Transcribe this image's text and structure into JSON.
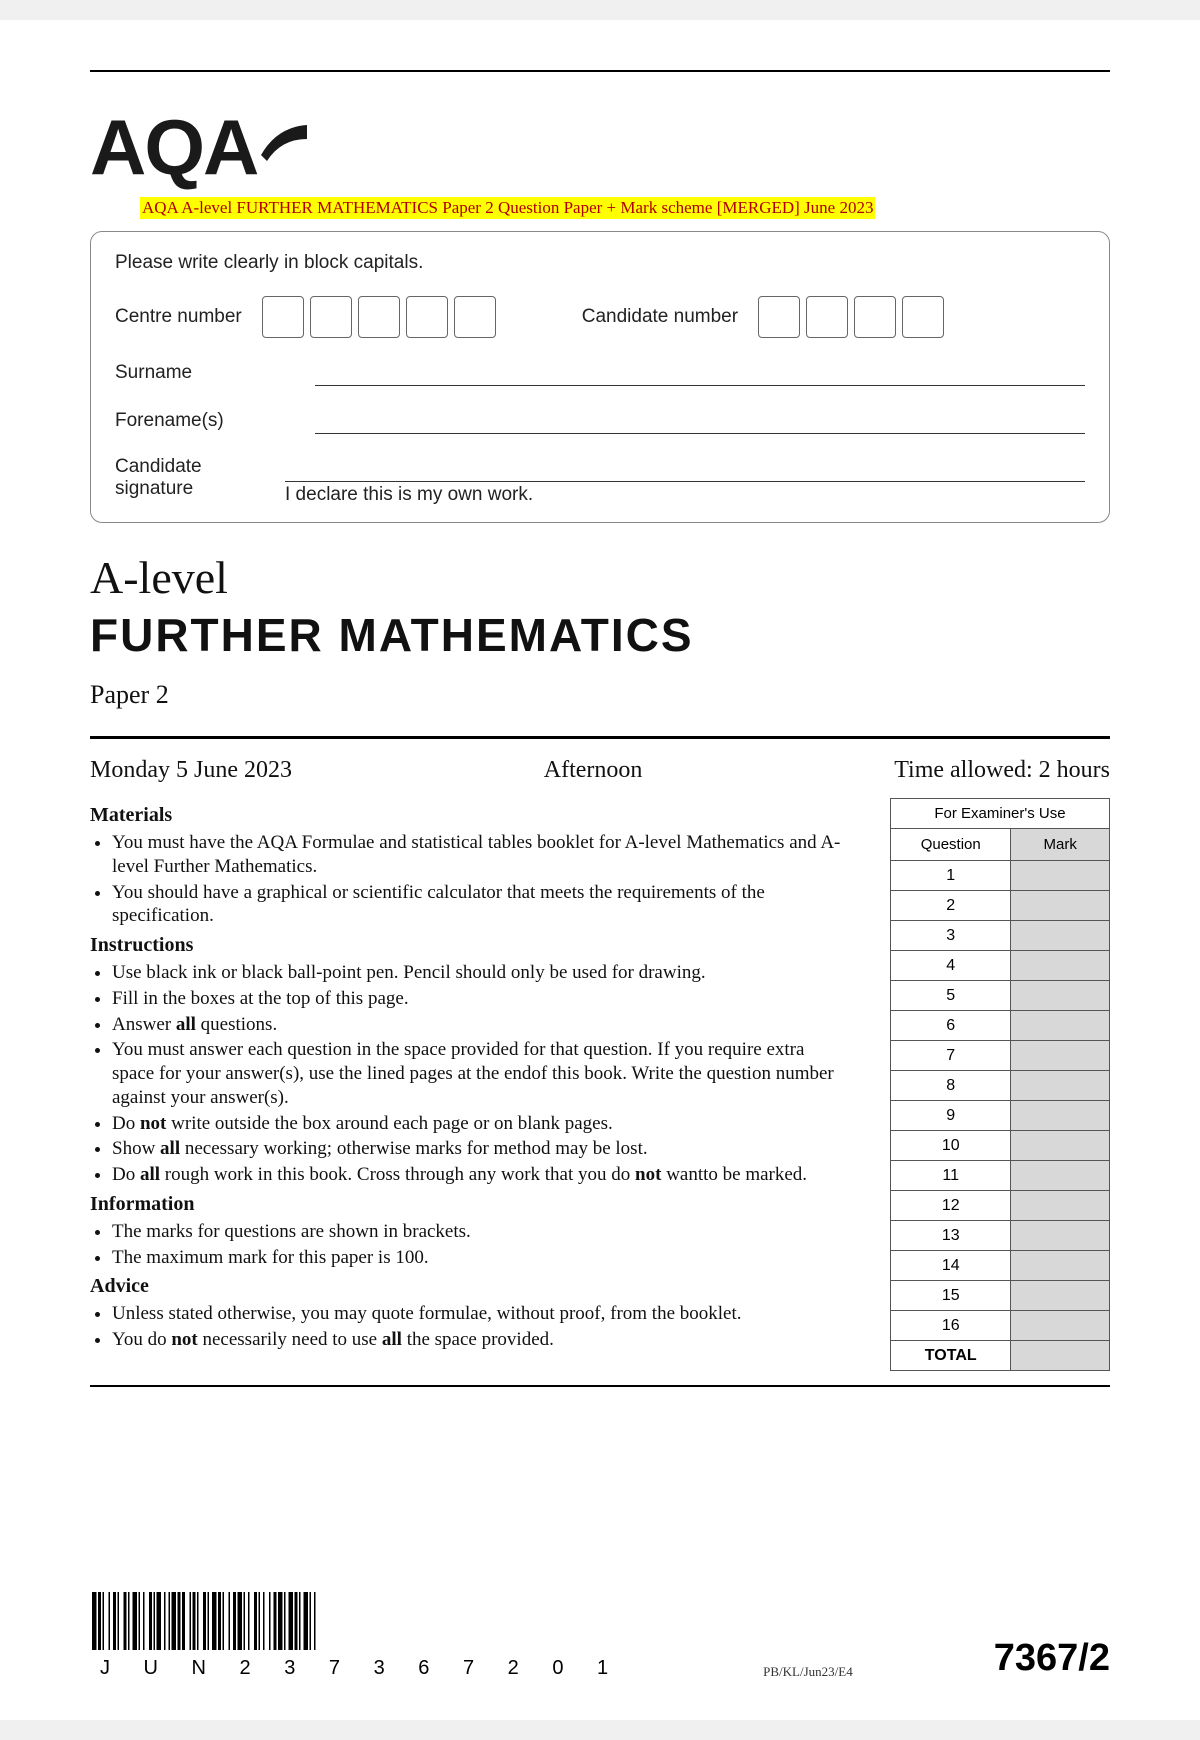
{
  "logo_text": "AQA",
  "highlight": "AQA A-level FURTHER MATHEMATICS Paper 2 Question Paper + Mark scheme [MERGED] June 2023",
  "candidate_box": {
    "instruction": "Please write clearly in block capitals.",
    "centre_label": "Centre number",
    "candidate_label": "Candidate number",
    "surname_label": "Surname",
    "forenames_label": "Forename(s)",
    "signature_label": "Candidate signature",
    "declaration": "I declare this is my own work.",
    "centre_boxes": 5,
    "candidate_boxes": 4
  },
  "title": {
    "level": "A-level",
    "subject": "FURTHER  MATHEMATICS",
    "paper": "Paper 2"
  },
  "date_row": {
    "date": "Monday 5 June 2023",
    "session": "Afternoon",
    "time": "Time allowed: 2 hours"
  },
  "sections": {
    "materials": {
      "heading": "Materials",
      "items": [
        "You must have the AQA Formulae and statistical tables booklet for A-level Mathematics and A-level Further Mathematics.",
        "You should have a graphical or scientific calculator that meets the requirements of the specification."
      ]
    },
    "instructions": {
      "heading": "Instructions",
      "items": [
        "Use black ink or black ball-point pen.  Pencil should only be used for drawing.",
        "Fill in the boxes at the top of this page.",
        "Answer all questions.",
        "You must answer each question in the space provided for that question. If you require extra space for your answer(s), use the lined pages at the endof this book. Write the question number against your answer(s).",
        "Do not write outside the box around each page or on blank pages.",
        "Show all necessary working; otherwise marks for method may be lost.",
        "Do all rough work in this book. Cross through any work that you do not wantto be marked."
      ]
    },
    "information": {
      "heading": "Information",
      "items": [
        "The marks for questions are shown in brackets.",
        "The maximum mark for this paper is 100."
      ]
    },
    "advice": {
      "heading": "Advice",
      "items": [
        "Unless stated otherwise, you may quote formulae, without proof, from the booklet.",
        "You do not necessarily need to use all the space provided."
      ]
    }
  },
  "examiner_table": {
    "caption": "For Examiner's Use",
    "col_question": "Question",
    "col_mark": "Mark",
    "rows": [
      "1",
      "2",
      "3",
      "4",
      "5",
      "6",
      "7",
      "8",
      "9",
      "10",
      "11",
      "12",
      "13",
      "14",
      "15",
      "16"
    ],
    "total_label": "TOTAL"
  },
  "footer": {
    "barcode_text": "JUN237367201",
    "small_code": "PB/KL/Jun23/E4",
    "paper_code": "7367/2"
  },
  "colors": {
    "highlight_bg": "#ffff00",
    "highlight_text": "#b00000",
    "mark_col_bg": "#d8d8d8",
    "page_bg": "#ffffff",
    "text": "#111111",
    "border": "#555555"
  }
}
